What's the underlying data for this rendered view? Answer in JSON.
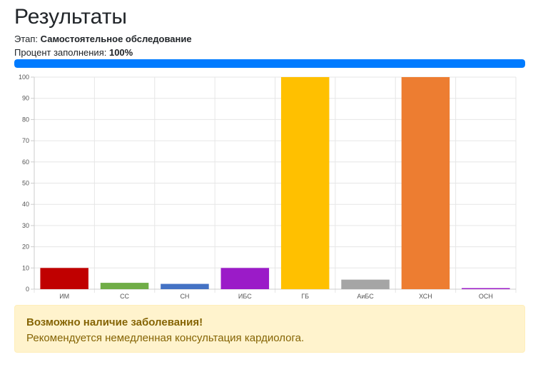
{
  "page": {
    "title": "Результаты"
  },
  "stage": {
    "label": "Этап:",
    "value": "Самостоятельное обследование"
  },
  "fill": {
    "label": "Процент заполнения:",
    "value": "100%",
    "fraction": 1.0,
    "color": "#007bff"
  },
  "chart_data": {
    "type": "bar",
    "categories": [
      "ИМ",
      "СС",
      "СН",
      "ИБС",
      "ГБ",
      "АиБС",
      "ХСН",
      "ОСН"
    ],
    "values": [
      10,
      3,
      2.5,
      10,
      100,
      4.5,
      100,
      0.5
    ],
    "colors": [
      "#c00000",
      "#70ad47",
      "#4472c4",
      "#9b1bc8",
      "#ffc000",
      "#a5a5a5",
      "#ed7d31",
      "#9b1bc8"
    ],
    "ylim": [
      0,
      100
    ],
    "yticks": [
      0,
      10,
      20,
      30,
      40,
      50,
      60,
      70,
      80,
      90,
      100
    ],
    "title": "",
    "xlabel": "",
    "ylabel": "",
    "grid": true,
    "legend": "none"
  },
  "alert": {
    "heading": "Возможно наличие заболевания!",
    "text": "Рекомендуется немедленная консультация кардиолога.",
    "background": "#fff3cd",
    "color": "#856404"
  }
}
